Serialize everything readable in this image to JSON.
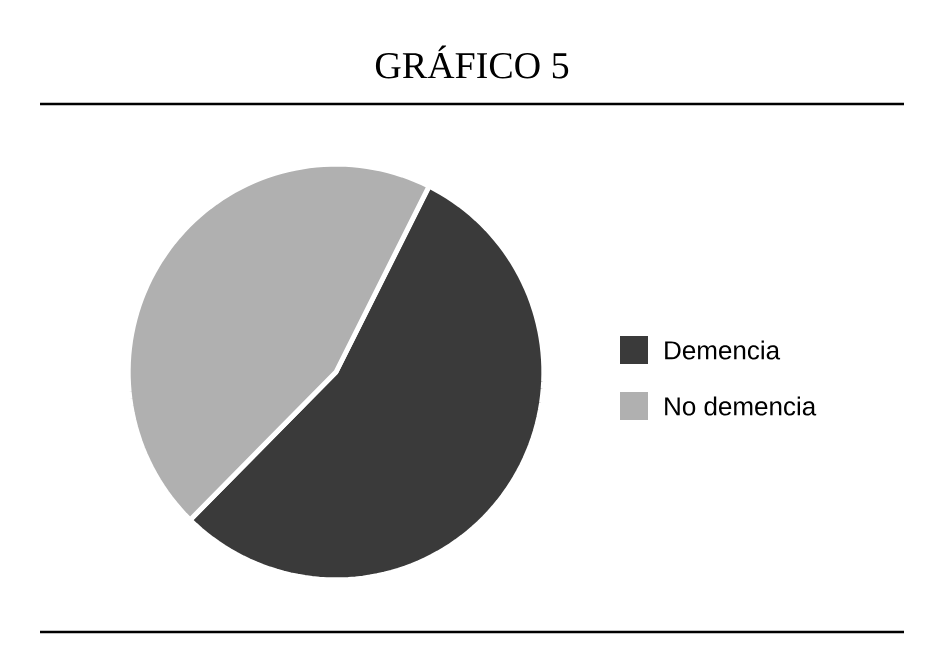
{
  "chart_data": {
    "type": "pie",
    "title": "GRÁFICO 5",
    "categories": [
      "Demencia",
      "No demencia"
    ],
    "values": [
      55,
      45
    ],
    "colors": [
      "#3a3a3a",
      "#b0b0b0"
    ],
    "legend": "right"
  }
}
